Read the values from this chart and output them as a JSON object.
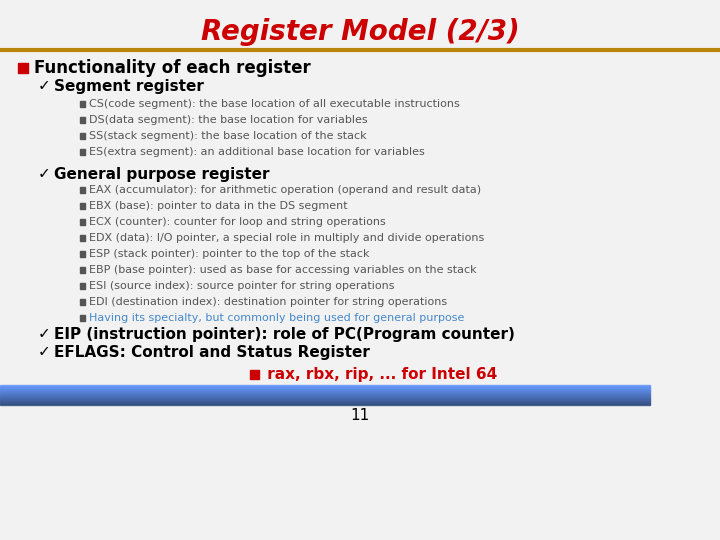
{
  "title": "Register Model (2/3)",
  "title_color": "#cc0000",
  "title_fontsize": 20,
  "bg_color": "#f0f0f0",
  "slide_bg": "#f0f0f0",
  "header_line_color": "#b8860b",
  "footer_line_color": "#4477aa",
  "page_number": "11",
  "bullet1": "Functionality of each register",
  "bullet1_color": "#000000",
  "bullet1_marker_color": "#cc0000",
  "check1": "Segment register",
  "segment_items": [
    "CS(code segment): the base location of all executable instructions",
    "DS(data segment): the base location for variables",
    "SS(stack segment): the base location of the stack",
    "ES(extra segment): an additional base location for variables"
  ],
  "check2": "General purpose register",
  "general_items": [
    "EAX (accumulator): for arithmetic operation (operand and result data)",
    "EBX (base): pointer to data in the DS segment",
    "ECX (counter): counter for loop and string operations",
    "EDX (data): I/O pointer, a special role in multiply and divide operations",
    "ESP (stack pointer): pointer to the top of the stack",
    "EBP (base pointer): used as base for accessing variables on the stack",
    "ESI (source index): source pointer for string operations",
    "EDI (destination index): destination pointer for string operations",
    "Having its specialty, but commonly being used for general purpose"
  ],
  "general_last_color": "#4488cc",
  "check3": "EIP (instruction pointer): role of PC(Program counter)",
  "check4": "EFLAGS: Control and Status Register",
  "footer_note_marker_color": "#cc0000",
  "footer_note": " rax, rbx, rip, ... for Intel 64",
  "footer_note_color": "#cc0000",
  "check_color": "#000000",
  "sub_item_color": "#555555",
  "bold_check_color": "#000000"
}
